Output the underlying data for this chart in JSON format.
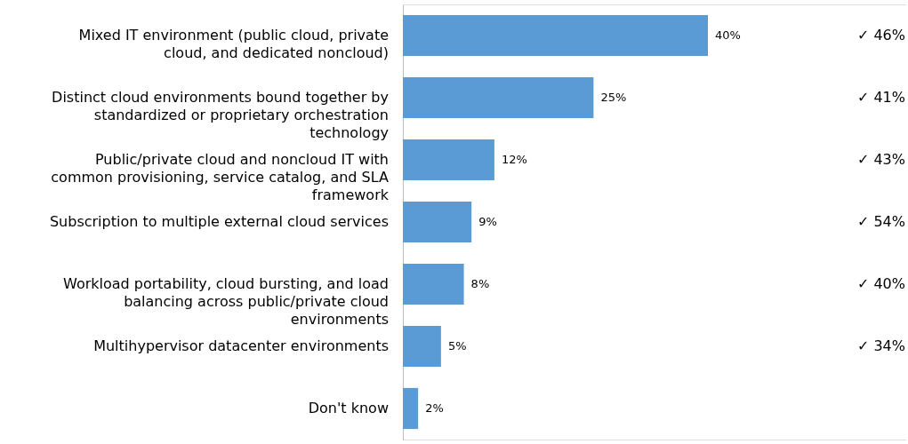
{
  "chart_data": {
    "type": "bar",
    "orientation": "horizontal",
    "categories": [
      "Mixed IT environment (public cloud, private cloud, and dedicated noncloud)",
      "Distinct cloud environments bound together by standardized or proprietary orchestration technology",
      "Public/private cloud and noncloud IT with common provisioning, service catalog, and SLA framework",
      "Subscription to multiple external cloud services",
      "Workload portability, cloud bursting, and load balancing across public/private cloud environments",
      "Multihypervisor datacenter environments",
      "Don't know"
    ],
    "values": [
      40,
      25,
      12,
      9,
      8,
      5,
      2
    ],
    "value_labels": [
      "40%",
      "25%",
      "12%",
      "9%",
      "8%",
      "5%",
      "2%"
    ],
    "color": "#5b9bd5",
    "annotations": [
      "✓  46%",
      "✓  41%",
      "✓  43%",
      "✓  54%",
      "✓  40%",
      "✓  34%"
    ],
    "grid": false
  }
}
